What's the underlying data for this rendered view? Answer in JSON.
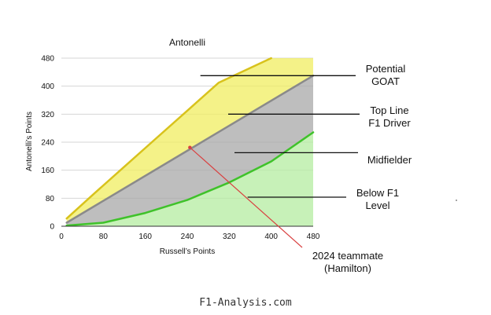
{
  "chart_data": {
    "type": "area",
    "title": "Antonelli",
    "xlabel": "Russell’s Points",
    "ylabel": "Antonelli’s Points",
    "xlim": [
      0,
      480
    ],
    "ylim": [
      0,
      480
    ],
    "x_ticks": [
      "0",
      "80",
      "160",
      "240",
      "320",
      "400",
      "480"
    ],
    "y_ticks": [
      "0",
      "80",
      "160",
      "240",
      "320",
      "400",
      "480"
    ],
    "grid": "horizontal",
    "regions": [
      {
        "name": "Potential GOAT",
        "label_lines": [
          "Potential",
          "GOAT"
        ],
        "color": "#f0ee60",
        "upper": [
          [
            10,
            22
          ],
          [
            60,
            90
          ],
          [
            120,
            170
          ],
          [
            180,
            250
          ],
          [
            240,
            330
          ],
          [
            300,
            410
          ],
          [
            400,
            480
          ],
          [
            480,
            480
          ]
        ],
        "lower": [
          [
            10,
            10
          ],
          [
            480,
            430
          ]
        ]
      },
      {
        "name": "Top Line F1 Driver",
        "label_lines": [
          "Top Line",
          "F1 Driver"
        ],
        "color": "#a8a8a8",
        "upper": [
          [
            10,
            10
          ],
          [
            480,
            430
          ]
        ],
        "lower": [
          [
            10,
            2
          ],
          [
            80,
            10
          ],
          [
            160,
            38
          ],
          [
            240,
            75
          ],
          [
            320,
            125
          ],
          [
            400,
            185
          ],
          [
            480,
            268
          ]
        ]
      },
      {
        "name": "Midfielder",
        "label_lines": [
          "Midfielder"
        ],
        "color": "#a8a8a8",
        "upper": [
          [
            10,
            10
          ],
          [
            480,
            430
          ]
        ],
        "lower": [
          [
            10,
            2
          ],
          [
            80,
            10
          ],
          [
            160,
            38
          ],
          [
            240,
            75
          ],
          [
            320,
            125
          ],
          [
            400,
            185
          ],
          [
            480,
            268
          ]
        ]
      },
      {
        "name": "Below F1 Level",
        "label_lines": [
          "Below F1",
          "Level"
        ],
        "color": "#b4eca0",
        "upper": [
          [
            10,
            2
          ],
          [
            80,
            10
          ],
          [
            160,
            38
          ],
          [
            240,
            75
          ],
          [
            320,
            125
          ],
          [
            400,
            185
          ],
          [
            480,
            268
          ]
        ],
        "lower": [
          [
            10,
            0
          ],
          [
            480,
            0
          ]
        ]
      }
    ],
    "boundaries": [
      {
        "name": "top-curve",
        "color": "#d8c21c",
        "points": [
          [
            10,
            22
          ],
          [
            60,
            90
          ],
          [
            120,
            170
          ],
          [
            180,
            250
          ],
          [
            240,
            330
          ],
          [
            300,
            410
          ],
          [
            400,
            480
          ]
        ]
      },
      {
        "name": "diagonal-line",
        "color": "#8a8a8a",
        "points": [
          [
            10,
            10
          ],
          [
            480,
            430
          ]
        ]
      },
      {
        "name": "bottom-curve",
        "color": "#3fc22a",
        "points": [
          [
            10,
            2
          ],
          [
            80,
            10
          ],
          [
            160,
            38
          ],
          [
            240,
            75
          ],
          [
            320,
            125
          ],
          [
            400,
            185
          ],
          [
            480,
            268
          ]
        ]
      }
    ],
    "annotations": [
      {
        "text_lines": [
          "Potential",
          "GOAT"
        ],
        "pointer_from": [
          265,
          430
        ]
      },
      {
        "text_lines": [
          "Top Line",
          "F1 Driver"
        ],
        "pointer_from": [
          318,
          320
        ]
      },
      {
        "text_lines": [
          "Midfielder"
        ],
        "pointer_from": [
          330,
          210
        ]
      },
      {
        "text_lines": [
          "Below F1",
          "Level"
        ],
        "pointer_from": [
          355,
          83
        ]
      }
    ],
    "point": {
      "label_lines": [
        "2024 teammate",
        "(Hamilton)"
      ],
      "x": 245,
      "y": 225,
      "color": "#d94040"
    }
  },
  "footer": "F1-Analysis.com"
}
